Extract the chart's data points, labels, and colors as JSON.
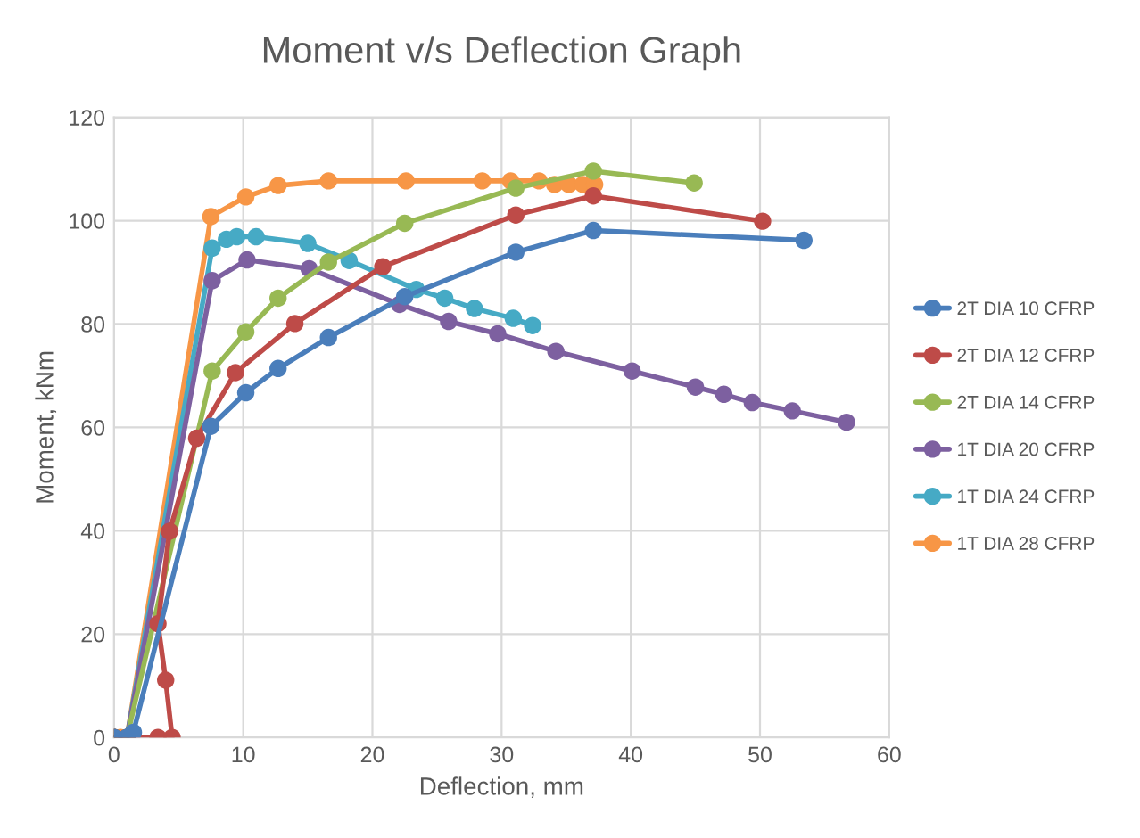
{
  "chart_data": {
    "type": "line",
    "title": "Moment v/s Deflection Graph",
    "xlabel": "Deflection, mm",
    "ylabel": "Moment, kNm",
    "xlim": [
      0,
      60
    ],
    "xticks": [
      0,
      10,
      20,
      30,
      40,
      50,
      60
    ],
    "ylim": [
      0,
      120
    ],
    "yticks": [
      0,
      20,
      40,
      60,
      80,
      100,
      120
    ],
    "grid": true,
    "legend": "right",
    "marker": "circle",
    "line_style": "solid",
    "series": [
      {
        "name": "2T DIA 10 CFRP",
        "color": "#4a7ebb",
        "x": [
          0,
          1,
          1.5,
          7.5,
          10.2,
          12.7,
          16.6,
          22.5,
          31.1,
          37.1,
          53.4
        ],
        "values": [
          0,
          0,
          1,
          60.2,
          66.7,
          71.4,
          77.4,
          85.3,
          93.9,
          98.1,
          96.2
        ]
      },
      {
        "name": "2T DIA 12 CFRP",
        "color": "#be4b48",
        "x": [
          0,
          1,
          3.4,
          4.5,
          4.0,
          3.4,
          4.3,
          6.4,
          9.4,
          14.0,
          20.8,
          31.1,
          37.1,
          50.2
        ],
        "values": [
          0,
          0,
          0,
          0,
          11.1,
          22,
          39.9,
          57.9,
          70.6,
          80.1,
          91.1,
          101.1,
          104.8,
          99.9
        ]
      },
      {
        "name": "2T DIA 14 CFRP",
        "color": "#98b954",
        "x": [
          0,
          1,
          7.6,
          10.2,
          12.7,
          16.6,
          22.5,
          31.1,
          37.1,
          44.9
        ],
        "values": [
          0,
          0,
          70.9,
          78.5,
          85.0,
          92.0,
          99.5,
          106.3,
          109.6,
          107.3
        ]
      },
      {
        "name": "1T DIA 20 CFRP",
        "color": "#7d60a0",
        "x": [
          0,
          1,
          7.6,
          10.3,
          15.1,
          22.1,
          25.9,
          29.7,
          34.2,
          40.1,
          45.0,
          47.2,
          49.4,
          52.5,
          56.7
        ],
        "values": [
          0,
          0,
          88.4,
          92.4,
          90.7,
          83.8,
          80.5,
          78.1,
          74.7,
          70.9,
          67.8,
          66.4,
          64.8,
          63.2,
          61
        ]
      },
      {
        "name": "1T DIA 24 CFRP",
        "color": "#46aac5",
        "x": [
          0,
          1,
          7.6,
          8.7,
          9.5,
          11.0,
          15.0,
          18.2,
          23.4,
          25.6,
          27.9,
          30.9,
          32.4
        ],
        "values": [
          0,
          0,
          94.7,
          96.4,
          96.9,
          96.9,
          95.6,
          92.3,
          86.7,
          85.0,
          83.0,
          81.1,
          79.7
        ]
      },
      {
        "name": "1T DIA 28 CFRP",
        "color": "#f79646",
        "x": [
          0,
          0.5,
          1,
          7.5,
          10.2,
          12.7,
          16.6,
          22.6,
          28.5,
          30.7,
          32.9,
          34.1,
          35.2,
          36.3,
          37.2
        ],
        "values": [
          0,
          0,
          0,
          100.8,
          104.6,
          106.8,
          107.7,
          107.7,
          107.7,
          107.7,
          107.7,
          107,
          107,
          107,
          107
        ]
      }
    ]
  }
}
